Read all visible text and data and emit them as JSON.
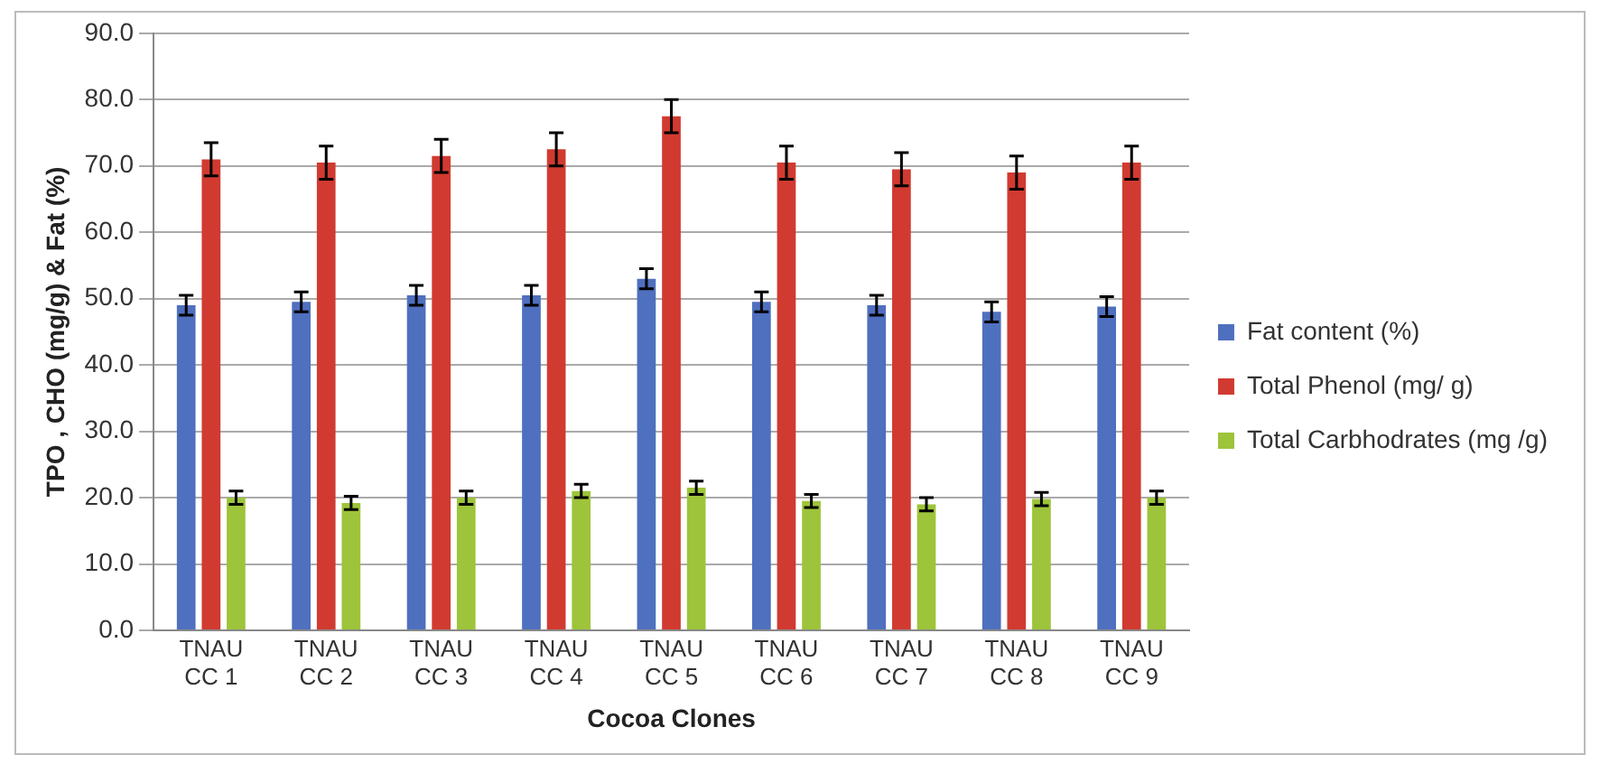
{
  "chart_data": {
    "type": "bar",
    "xlabel": "Cocoa Clones",
    "ylabel": "TPO , CHO (mg/g) & Fat (%)",
    "categories": [
      "TNAU CC 1",
      "TNAU CC 2",
      "TNAU CC 3",
      "TNAU CC 4",
      "TNAU CC 5",
      "TNAU CC 6",
      "TNAU CC 7",
      "TNAU CC 8",
      "TNAU CC 9"
    ],
    "series": [
      {
        "name": "Fat content (%)",
        "color": "#4f6fbf",
        "values": [
          49.0,
          49.5,
          50.5,
          50.5,
          53.0,
          49.5,
          49.0,
          48.0,
          48.8
        ],
        "errors": [
          1.5,
          1.5,
          1.5,
          1.5,
          1.5,
          1.5,
          1.5,
          1.5,
          1.5
        ]
      },
      {
        "name": "Total Phenol (mg/ g)",
        "color": "#d13a30",
        "values": [
          71.0,
          70.5,
          71.5,
          72.5,
          77.5,
          70.5,
          69.5,
          69.0,
          70.5
        ],
        "errors": [
          2.5,
          2.5,
          2.5,
          2.5,
          2.5,
          2.5,
          2.5,
          2.5,
          2.5
        ]
      },
      {
        "name": "Total Carbhodrates (mg /g)",
        "color": "#9dc43a",
        "values": [
          20.0,
          19.2,
          20.0,
          21.0,
          21.5,
          19.5,
          19.0,
          19.8,
          20.0
        ],
        "errors": [
          1.0,
          1.0,
          1.0,
          1.0,
          1.0,
          1.0,
          1.0,
          1.0,
          1.0
        ]
      }
    ],
    "ylim": [
      0,
      90
    ],
    "yticks": [
      {
        "value": 0,
        "label": "0.0"
      },
      {
        "value": 10,
        "label": "10.0"
      },
      {
        "value": 20,
        "label": "20.0"
      },
      {
        "value": 30,
        "label": "30.0"
      },
      {
        "value": 40,
        "label": "40.0"
      },
      {
        "value": 50,
        "label": "50.0"
      },
      {
        "value": 60,
        "label": "60.0"
      },
      {
        "value": 70,
        "label": "70.0"
      },
      {
        "value": 80,
        "label": "80.0"
      },
      {
        "value": 90,
        "label": "90.0"
      }
    ],
    "grid": "y",
    "legend": "right"
  }
}
